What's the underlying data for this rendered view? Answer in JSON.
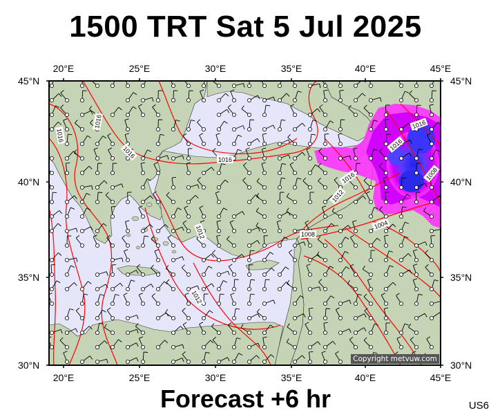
{
  "title": "1500 TRT Sat 5 Jul 2025",
  "subtitle": "Forecast +6 hr",
  "map_code": "US6",
  "copyright": "Copyright metvuw.com",
  "axes": {
    "lon_labels": [
      "20°E",
      "25°E",
      "30°E",
      "35°E",
      "40°E",
      "45°E"
    ],
    "lat_labels": [
      "45°N",
      "40°N",
      "35°N",
      "30°N"
    ]
  },
  "colors": {
    "sea": "#e6e6fa",
    "land": "#c7d6b8",
    "isobar": "#ff0000",
    "precip_light": "#ff00ff",
    "precip_heavy": "#3333ff"
  },
  "isobar_labels": [
    "1016",
    "1016",
    "1016",
    "1016",
    "1016",
    "1016",
    "1012",
    "1012",
    "1012",
    "1008",
    "1004",
    "1016",
    "1008"
  ]
}
